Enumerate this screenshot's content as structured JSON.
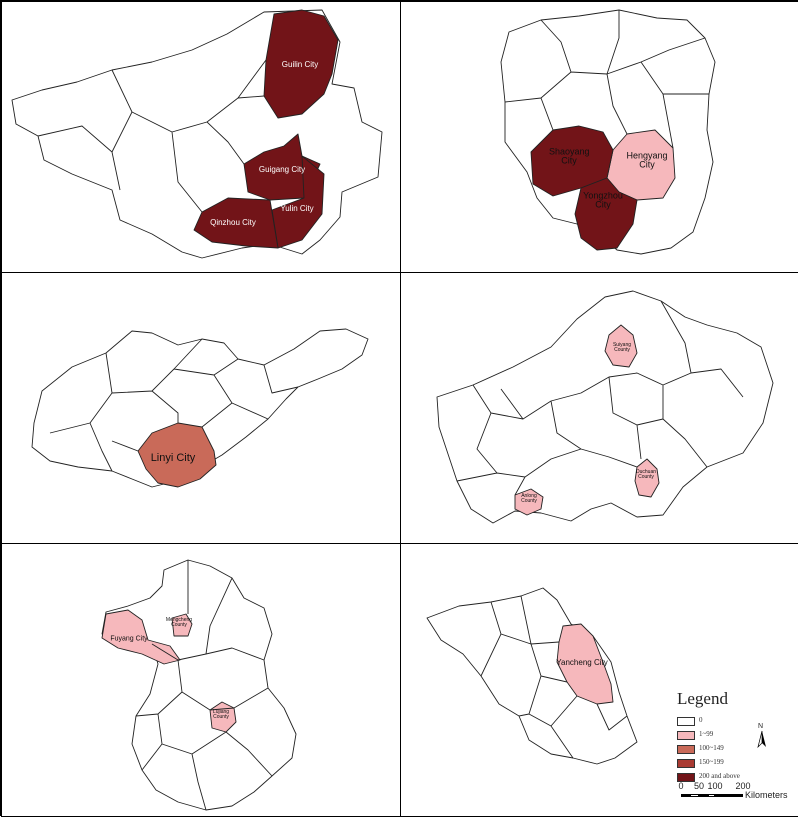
{
  "colors": {
    "class_0": "#ffffff",
    "class_1_99": "#f6b8bc",
    "class_100_149": "#c96a59",
    "class_150_199": "#a93a32",
    "class_200_plus": "#721418",
    "boundary": "#222222"
  },
  "panels": [
    {
      "labels": [
        {
          "name": "Guilin City",
          "class": "200 and above"
        },
        {
          "name": "Guigang City",
          "class": "200 and above"
        },
        {
          "name": "Yulin City",
          "class": "200 and above"
        },
        {
          "name": "Qinzhou City",
          "class": "200 and above"
        }
      ]
    },
    {
      "labels": [
        {
          "name": "Shaoyang City",
          "class": "200 and above"
        },
        {
          "name": "Hengyang City",
          "class": "1~99"
        },
        {
          "name": "Yongzhou City",
          "class": "200 and above"
        }
      ]
    },
    {
      "labels": [
        {
          "name": "Linyi City",
          "class": "100~149"
        }
      ]
    },
    {
      "labels": [
        {
          "name": "Suiyang County",
          "class": "1~99"
        },
        {
          "name": "Duchuan County",
          "class": "1~99"
        },
        {
          "name": "Anlong County",
          "class": "1~99"
        }
      ]
    },
    {
      "labels": [
        {
          "name": "Fuyang City",
          "class": "1~99"
        },
        {
          "name": "Mengcheng County",
          "class": "1~99"
        },
        {
          "name": "Lujiang County",
          "class": "1~99"
        }
      ]
    },
    {
      "labels": [
        {
          "name": "Yancheng City",
          "class": "1~99"
        }
      ]
    }
  ],
  "legend": {
    "title": "Legend",
    "items": [
      {
        "label": "0",
        "color": "#ffffff"
      },
      {
        "label": "1~99",
        "color": "#f6b8bc"
      },
      {
        "label": "100~149",
        "color": "#c96a59"
      },
      {
        "label": "150~199",
        "color": "#a93a32"
      },
      {
        "label": "200  and  above",
        "color": "#721418"
      }
    ]
  },
  "north_arrow": {
    "label": "N"
  },
  "scale_bar": {
    "ticks": [
      "0",
      "50",
      "100",
      "200"
    ],
    "unit": "Kilometers"
  }
}
